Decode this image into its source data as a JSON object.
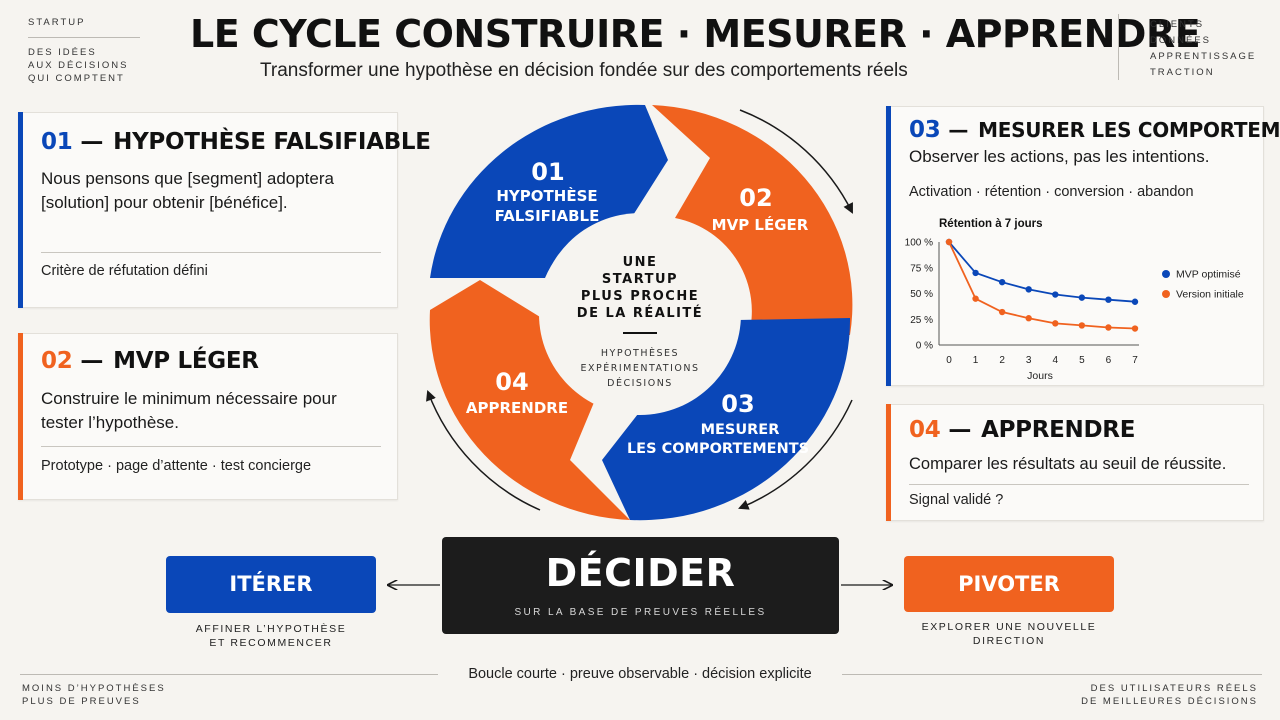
{
  "header": {
    "title": "LE CYCLE CONSTRUIRE · MESURER · APPRENDRE",
    "subtitle": "Transformer une hypothèse en décision fondée sur des comportements réels",
    "left_tag": "STARTUP",
    "left_lines": [
      "DES IDÉES",
      "AUX DÉCISIONS",
      "QUI COMPTENT"
    ],
    "right_lines": [
      "CLIENTS",
      "DONNÉES",
      "APPRENTISSAGE",
      "TRACTION"
    ]
  },
  "colors": {
    "blue": "#0a47b8",
    "orange": "#f0621f",
    "dark": "#1c1c1c",
    "background": "#f6f4f0"
  },
  "cards": {
    "c1": {
      "num": "01",
      "dash": "—",
      "title": "HYPOTHÈSE FALSIFIABLE",
      "text": "Nous pensons que [segment] adoptera [solution] pour obtenir [bénéfice].",
      "foot": "Critère de réfutation défini"
    },
    "c2": {
      "num": "02",
      "dash": "—",
      "title": "MVP LÉGER",
      "text": "Construire le minimum nécessaire pour tester l’hypothèse.",
      "foot": "Prototype  ·  page d’attente  ·  test concierge"
    },
    "c3": {
      "num": "03",
      "dash": "—",
      "title": "MESURER LES COMPORTEMENTS",
      "text": "Observer les actions, pas les intentions.",
      "foot": "Activation  ·  rétention  ·  conversion  ·  abandon"
    },
    "c4": {
      "num": "04",
      "dash": "—",
      "title": "APPRENDRE",
      "text": "Comparer les résultats au seuil de réussite.",
      "foot": "Signal validé ?"
    }
  },
  "cycle": {
    "s1": {
      "num": "01",
      "l1": "HYPOTHÈSE",
      "l2": "FALSIFIABLE"
    },
    "s2": {
      "num": "02",
      "l1": "MVP LÉGER"
    },
    "s3": {
      "num": "03",
      "l1": "MESURER",
      "l2": "LES COMPORTEMENTS"
    },
    "s4": {
      "num": "04",
      "l1": "APPRENDRE"
    },
    "center": {
      "lines": [
        "UNE",
        "STARTUP",
        "PLUS PROCHE",
        "DE LA RÉALITÉ"
      ],
      "sub": [
        "HYPOTHÈSES",
        "EXPÉRIMENTATIONS",
        "DÉCISIONS"
      ]
    }
  },
  "chart_data": {
    "type": "line",
    "title": "Rétention à 7 jours",
    "xlabel": "Jours",
    "ylabel": "",
    "x": [
      0,
      1,
      2,
      3,
      4,
      5,
      6,
      7
    ],
    "ylim": [
      0,
      100
    ],
    "yticks": [
      "0 %",
      "25 %",
      "50 %",
      "75 %",
      "100 %"
    ],
    "legend_position": "right",
    "grid": false,
    "series": [
      {
        "name": "MVP optimisé",
        "color": "#0a47b8",
        "values": [
          100,
          70,
          61,
          54,
          49,
          46,
          44,
          42
        ]
      },
      {
        "name": "Version initiale",
        "color": "#f0621f",
        "values": [
          100,
          45,
          32,
          26,
          21,
          19,
          17,
          16
        ]
      }
    ]
  },
  "actions": {
    "iterate": {
      "label": "ITÉRER",
      "caption1": "AFFINER L’HYPOTHÈSE",
      "caption2": "ET RECOMMENCER"
    },
    "decide": {
      "label": "DÉCIDER",
      "sub": "SUR LA BASE DE PREUVES RÉELLES"
    },
    "pivot": {
      "label": "PIVOTER",
      "caption1": "EXPLORER UNE NOUVELLE",
      "caption2": "DIRECTION"
    }
  },
  "footer": {
    "center": "Boucle courte  ·  preuve observable  ·  décision explicite",
    "left": [
      "MOINS D’HYPOTHÈSES",
      "PLUS DE PREUVES"
    ],
    "right": [
      "DES UTILISATEURS RÉELS",
      "DE MEILLEURES DÉCISIONS"
    ]
  }
}
